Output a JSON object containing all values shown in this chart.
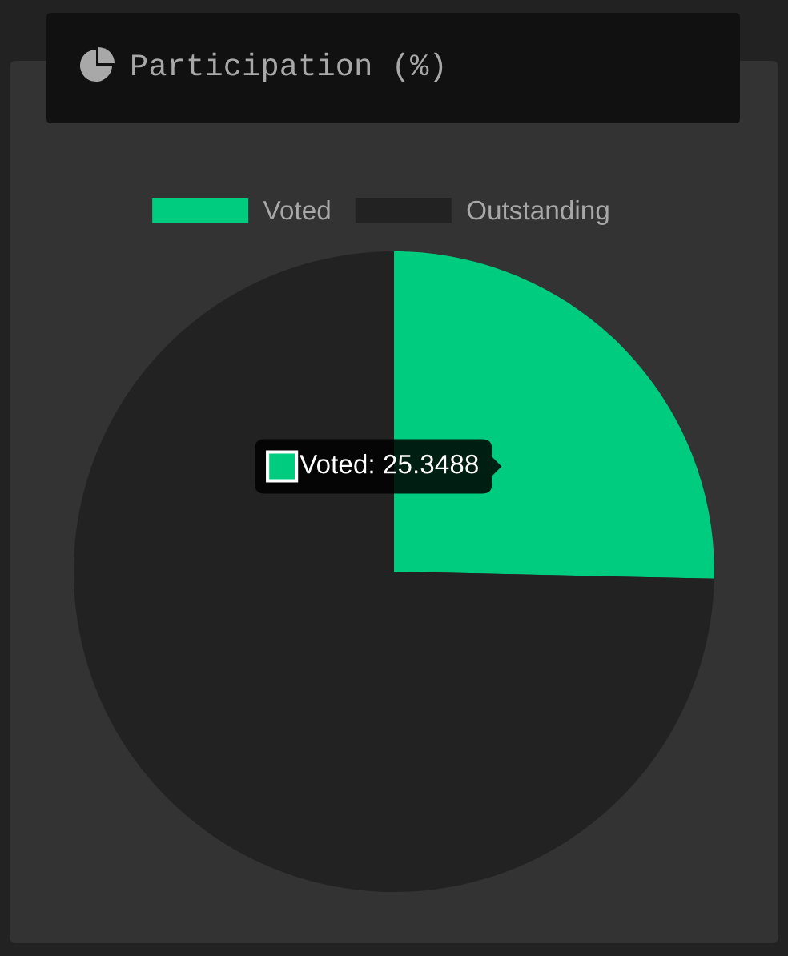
{
  "chart_data": {
    "type": "pie",
    "title": "Participation (%)",
    "categories": [
      "Voted",
      "Outstanding"
    ],
    "values": [
      25.3488,
      74.6512
    ],
    "colors": [
      "#00cc80",
      "#222222"
    ],
    "legend": "top",
    "value_labels": [
      "Voted: 25.3488",
      null
    ]
  }
}
